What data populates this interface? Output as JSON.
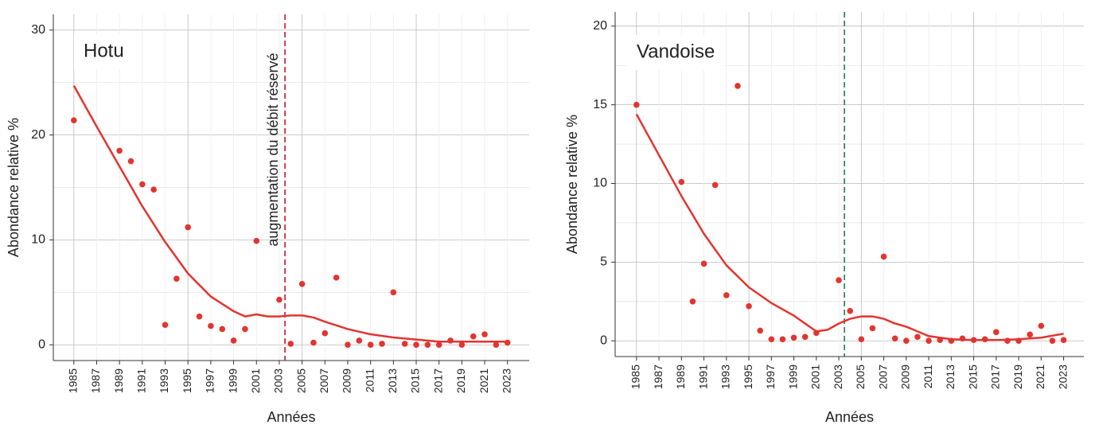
{
  "chart_data": [
    {
      "type": "scatter",
      "title": "Hotu",
      "x_label": "Années",
      "y_label": "Abondance relative %",
      "xlim": [
        1983.2,
        2024.9
      ],
      "ylim": [
        -1.5,
        31.5
      ],
      "xticks": [
        1985,
        1987,
        1989,
        1991,
        1993,
        1995,
        1997,
        1999,
        2001,
        2003,
        2005,
        2007,
        2009,
        2011,
        2013,
        2015,
        2017,
        2019,
        2021,
        2023
      ],
      "yticks": [
        0,
        10,
        20,
        30
      ],
      "grid": true,
      "series": [
        {
          "type": "scatter",
          "color": "#e3342f",
          "x": [
            1985,
            1989,
            1990,
            1991,
            1992,
            1993,
            1994,
            1995,
            1996,
            1997,
            1998,
            1999,
            2000,
            2001,
            2003,
            2004,
            2005,
            2006,
            2007,
            2008,
            2009,
            2010,
            2011,
            2012,
            2013,
            2014,
            2015,
            2016,
            2017,
            2018,
            2019,
            2020,
            2021,
            2022,
            2023
          ],
          "values": [
            21.4,
            18.5,
            17.5,
            15.3,
            14.8,
            1.9,
            6.3,
            11.2,
            2.7,
            1.8,
            1.5,
            0.4,
            1.5,
            9.9,
            4.3,
            0.1,
            5.8,
            0.2,
            1.1,
            6.4,
            0,
            0.4,
            0,
            0.1,
            5.0,
            0.1,
            0,
            0,
            0,
            0.4,
            0,
            0.8,
            1.0,
            0,
            0.2
          ]
        },
        {
          "type": "line",
          "color": "#e3342f",
          "x": [
            1985,
            1987,
            1989,
            1991,
            1993,
            1995,
            1997,
            1999,
            2000,
            2001,
            2002,
            2003,
            2004,
            2005,
            2006,
            2007,
            2009,
            2011,
            2013,
            2015,
            2017,
            2019,
            2021,
            2023
          ],
          "values": [
            24.7,
            20.8,
            17.0,
            13.2,
            9.8,
            6.8,
            4.6,
            3.2,
            2.7,
            2.9,
            2.7,
            2.7,
            2.8,
            2.8,
            2.6,
            2.2,
            1.5,
            1.0,
            0.7,
            0.5,
            0.3,
            0.3,
            0.3,
            0.3
          ]
        }
      ],
      "vline": {
        "x": 2003.5,
        "color": "#c0143c",
        "label": "augmentation du débit réservé"
      }
    },
    {
      "type": "scatter",
      "title": "Vandoise",
      "x_label": "Années",
      "y_label": "Abondance relative %",
      "xlim": [
        1983.1,
        2024.8
      ],
      "ylim": [
        -1,
        20.9
      ],
      "xticks": [
        1985,
        1987,
        1989,
        1991,
        1993,
        1995,
        1997,
        1999,
        2001,
        2003,
        2005,
        2007,
        2009,
        2011,
        2013,
        2015,
        2017,
        2019,
        2021,
        2023
      ],
      "yticks": [
        0,
        5,
        10,
        15,
        20
      ],
      "grid": true,
      "series": [
        {
          "type": "scatter",
          "color": "#e3342f",
          "x": [
            1985,
            1989,
            1990,
            1991,
            1992,
            1993,
            1994,
            1995,
            1996,
            1997,
            1998,
            1999,
            2000,
            2001,
            2003,
            2004,
            2005,
            2006,
            2007,
            2008,
            2009,
            2010,
            2011,
            2012,
            2013,
            2014,
            2015,
            2016,
            2017,
            2018,
            2019,
            2020,
            2021,
            2022,
            2023
          ],
          "values": [
            15.0,
            10.1,
            2.5,
            4.9,
            9.9,
            2.9,
            16.2,
            2.2,
            0.65,
            0.1,
            0.1,
            0.2,
            0.25,
            0.5,
            3.85,
            1.9,
            0.1,
            0.8,
            5.35,
            0.15,
            0,
            0.25,
            0,
            0.05,
            0,
            0.15,
            0.05,
            0.1,
            0.55,
            0,
            0,
            0.4,
            0.95,
            0,
            0.05
          ]
        },
        {
          "type": "line",
          "color": "#e3342f",
          "x": [
            1985,
            1987,
            1989,
            1991,
            1993,
            1995,
            1997,
            1999,
            2001,
            2002,
            2003,
            2004,
            2005,
            2006,
            2007,
            2008,
            2009,
            2010,
            2011,
            2013,
            2015,
            2017,
            2019,
            2021,
            2023
          ],
          "values": [
            14.4,
            11.8,
            9.2,
            6.8,
            4.8,
            3.4,
            2.4,
            1.6,
            0.6,
            0.7,
            1.1,
            1.4,
            1.55,
            1.55,
            1.4,
            1.1,
            0.9,
            0.6,
            0.3,
            0.1,
            0.05,
            0.05,
            0.1,
            0.2,
            0.45
          ]
        }
      ],
      "vline": {
        "x": 2003.5,
        "color": "#1f7a55"
      }
    }
  ]
}
